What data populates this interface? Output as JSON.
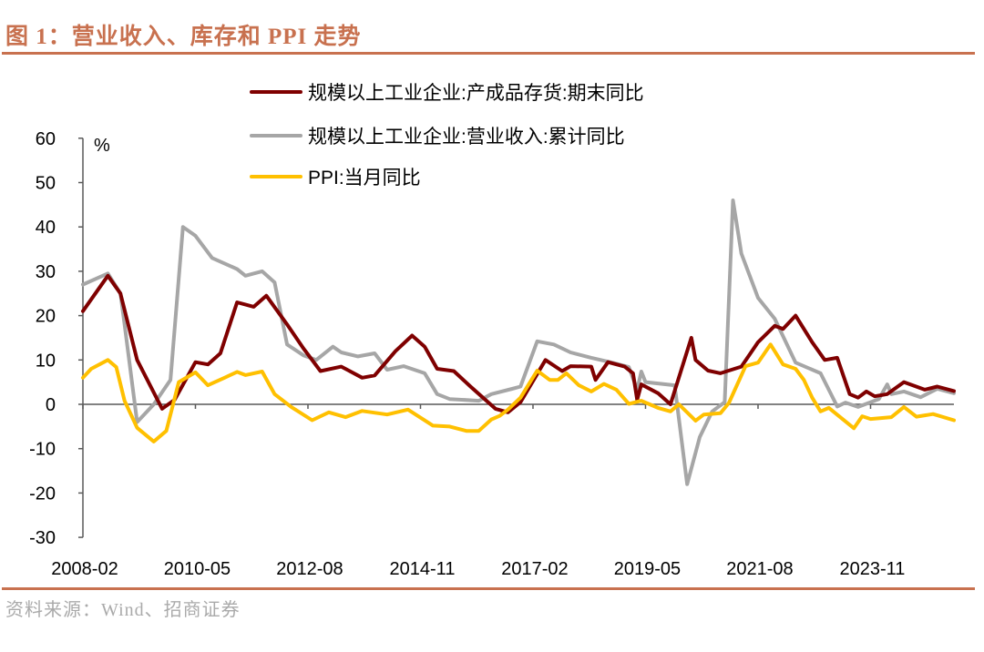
{
  "figure_title": "图 1：营业收入、库存和 PPI 走势",
  "source": "资料来源：Wind、招商证券",
  "chart_data": {
    "type": "line",
    "title": "",
    "xlabel": "",
    "ylabel": "%",
    "ylim": [
      -30,
      60
    ],
    "yticks": [
      -30,
      -20,
      -10,
      0,
      10,
      20,
      30,
      40,
      50,
      60
    ],
    "xlim": [
      "2008-02",
      "2025-07"
    ],
    "xticks": [
      "2008-02",
      "2010-05",
      "2012-08",
      "2014-11",
      "2017-02",
      "2019-05",
      "2021-08",
      "2023-11"
    ],
    "grid": false,
    "legend_position": "top-center",
    "series": [
      {
        "name": "规模以上工业企业:产成品存货:期末同比",
        "color": "#7f0000",
        "points": [
          [
            "2008-02",
            21
          ],
          [
            "2008-08",
            29
          ],
          [
            "2008-11",
            25
          ],
          [
            "2009-03",
            10
          ],
          [
            "2009-09",
            -1
          ],
          [
            "2009-12",
            1
          ],
          [
            "2010-05",
            9.5
          ],
          [
            "2010-08",
            9
          ],
          [
            "2010-11",
            11.5
          ],
          [
            "2011-03",
            23
          ],
          [
            "2011-07",
            22
          ],
          [
            "2011-10",
            24.5
          ],
          [
            "2012-03",
            18
          ],
          [
            "2012-07",
            12.5
          ],
          [
            "2012-11",
            7.5
          ],
          [
            "2013-04",
            8.5
          ],
          [
            "2013-09",
            6
          ],
          [
            "2013-12",
            6.5
          ],
          [
            "2014-05",
            12
          ],
          [
            "2014-09",
            15.5
          ],
          [
            "2014-12",
            13
          ],
          [
            "2015-03",
            8
          ],
          [
            "2015-07",
            7.5
          ],
          [
            "2015-11",
            4
          ],
          [
            "2016-05",
            -1
          ],
          [
            "2016-08",
            -1.8
          ],
          [
            "2016-11",
            0.5
          ],
          [
            "2017-05",
            10
          ],
          [
            "2017-09",
            7.5
          ],
          [
            "2017-11",
            8.6
          ],
          [
            "2018-04",
            8.5
          ],
          [
            "2018-05",
            5.5
          ],
          [
            "2018-08",
            9.5
          ],
          [
            "2018-12",
            8.5
          ],
          [
            "2019-02",
            7
          ],
          [
            "2019-03",
            1
          ],
          [
            "2019-04",
            4.5
          ],
          [
            "2019-08",
            2.5
          ],
          [
            "2019-11",
            0
          ],
          [
            "2020-04",
            15
          ],
          [
            "2020-05",
            10
          ],
          [
            "2020-08",
            7.6
          ],
          [
            "2020-11",
            7
          ],
          [
            "2021-04",
            8.5
          ],
          [
            "2021-08",
            14
          ],
          [
            "2021-12",
            17.7
          ],
          [
            "2022-02",
            17
          ],
          [
            "2022-05",
            20
          ],
          [
            "2022-09",
            14
          ],
          [
            "2022-12",
            10
          ],
          [
            "2023-03",
            10.5
          ],
          [
            "2023-06",
            2.3
          ],
          [
            "2023-08",
            1.5
          ],
          [
            "2023-10",
            2.9
          ],
          [
            "2023-12",
            1.8
          ],
          [
            "2024-03",
            2.3
          ],
          [
            "2024-07",
            5
          ],
          [
            "2024-12",
            3.3
          ],
          [
            "2025-03",
            4
          ],
          [
            "2025-07",
            3
          ]
        ]
      },
      {
        "name": "规模以上工业企业:营业收入:累计同比",
        "color": "#a6a6a6",
        "points": [
          [
            "2008-02",
            27
          ],
          [
            "2008-08",
            29.5
          ],
          [
            "2008-11",
            25
          ],
          [
            "2008-12",
            18
          ],
          [
            "2009-03",
            -4
          ],
          [
            "2009-07",
            0
          ],
          [
            "2009-11",
            5.5
          ],
          [
            "2010-02",
            40
          ],
          [
            "2010-05",
            38
          ],
          [
            "2010-09",
            33
          ],
          [
            "2011-03",
            30.5
          ],
          [
            "2011-05",
            29
          ],
          [
            "2011-09",
            30
          ],
          [
            "2011-12",
            27.5
          ],
          [
            "2012-03",
            13.5
          ],
          [
            "2012-07",
            11
          ],
          [
            "2012-10",
            10
          ],
          [
            "2013-02",
            13
          ],
          [
            "2013-04",
            11.7
          ],
          [
            "2013-08",
            10.8
          ],
          [
            "2013-12",
            11.5
          ],
          [
            "2014-03",
            7.8
          ],
          [
            "2014-07",
            8.6
          ],
          [
            "2014-12",
            7
          ],
          [
            "2015-03",
            2.3
          ],
          [
            "2015-06",
            1.2
          ],
          [
            "2016-01",
            0.8
          ],
          [
            "2016-04",
            2.3
          ],
          [
            "2016-09",
            3.5
          ],
          [
            "2016-11",
            4
          ],
          [
            "2017-03",
            14.2
          ],
          [
            "2017-07",
            13.5
          ],
          [
            "2017-11",
            11.7
          ],
          [
            "2018-04",
            10.5
          ],
          [
            "2018-09",
            9.4
          ],
          [
            "2019-01",
            8.4
          ],
          [
            "2019-03",
            3.3
          ],
          [
            "2019-04",
            7.4
          ],
          [
            "2019-05",
            5
          ],
          [
            "2019-12",
            4.3
          ],
          [
            "2020-03",
            -18
          ],
          [
            "2020-06",
            -7.4
          ],
          [
            "2020-09",
            -1.6
          ],
          [
            "2020-12",
            0.5
          ],
          [
            "2021-02",
            46
          ],
          [
            "2021-04",
            34
          ],
          [
            "2021-08",
            24
          ],
          [
            "2021-12",
            19.3
          ],
          [
            "2022-05",
            9.4
          ],
          [
            "2022-11",
            7
          ],
          [
            "2023-03",
            -0.5
          ],
          [
            "2023-05",
            0.4
          ],
          [
            "2023-08",
            -0.6
          ],
          [
            "2024-01",
            1.2
          ],
          [
            "2024-03",
            4.5
          ],
          [
            "2024-04",
            2.3
          ],
          [
            "2024-07",
            2.9
          ],
          [
            "2024-11",
            1.6
          ],
          [
            "2025-03",
            3.5
          ],
          [
            "2025-07",
            2.5
          ]
        ]
      },
      {
        "name": "PPI:当月同比",
        "color": "#ffc000",
        "points": [
          [
            "2008-02",
            6
          ],
          [
            "2008-04",
            8
          ],
          [
            "2008-08",
            10
          ],
          [
            "2008-10",
            8.4
          ],
          [
            "2008-12",
            0.8
          ],
          [
            "2009-03",
            -5.3
          ],
          [
            "2009-07",
            -8.4
          ],
          [
            "2009-10",
            -6
          ],
          [
            "2010-01",
            5
          ],
          [
            "2010-05",
            7.2
          ],
          [
            "2010-08",
            4.3
          ],
          [
            "2010-12",
            6
          ],
          [
            "2011-03",
            7.3
          ],
          [
            "2011-05",
            6.6
          ],
          [
            "2011-09",
            7.4
          ],
          [
            "2011-12",
            2.3
          ],
          [
            "2012-04",
            -0.6
          ],
          [
            "2012-09",
            -3.6
          ],
          [
            "2013-01",
            -1.8
          ],
          [
            "2013-05",
            -2.9
          ],
          [
            "2013-09",
            -1.5
          ],
          [
            "2014-03",
            -2.3
          ],
          [
            "2014-08",
            -1.2
          ],
          [
            "2015-02",
            -4.8
          ],
          [
            "2015-06",
            -5
          ],
          [
            "2015-10",
            -6
          ],
          [
            "2016-01",
            -6
          ],
          [
            "2016-04",
            -3.4
          ],
          [
            "2016-06",
            -2.6
          ],
          [
            "2016-08",
            -1.2
          ],
          [
            "2016-11",
            1.5
          ],
          [
            "2017-03",
            7.6
          ],
          [
            "2017-06",
            5.5
          ],
          [
            "2017-08",
            5.5
          ],
          [
            "2017-10",
            7
          ],
          [
            "2018-01",
            4.3
          ],
          [
            "2018-04",
            2.9
          ],
          [
            "2018-07",
            4.6
          ],
          [
            "2018-10",
            3.3
          ],
          [
            "2019-01",
            0.1
          ],
          [
            "2019-04",
            0.8
          ],
          [
            "2019-08",
            -0.8
          ],
          [
            "2019-11",
            -1.6
          ],
          [
            "2020-01",
            0
          ],
          [
            "2020-05",
            -3.7
          ],
          [
            "2020-07",
            -2.3
          ],
          [
            "2020-11",
            -2
          ],
          [
            "2021-01",
            0.3
          ],
          [
            "2021-05",
            8.6
          ],
          [
            "2021-08",
            9.4
          ],
          [
            "2021-11",
            13.5
          ],
          [
            "2022-02",
            9
          ],
          [
            "2022-05",
            8
          ],
          [
            "2022-07",
            5.5
          ],
          [
            "2022-09",
            1.5
          ],
          [
            "2022-11",
            -1.6
          ],
          [
            "2023-01",
            -0.8
          ],
          [
            "2023-07",
            -5.4
          ],
          [
            "2023-09",
            -2.7
          ],
          [
            "2023-11",
            -3.3
          ],
          [
            "2024-04",
            -2.9
          ],
          [
            "2024-07",
            -0.6
          ],
          [
            "2024-10",
            -2.8
          ],
          [
            "2025-02",
            -2.2
          ],
          [
            "2025-07",
            -3.6
          ]
        ]
      }
    ]
  }
}
